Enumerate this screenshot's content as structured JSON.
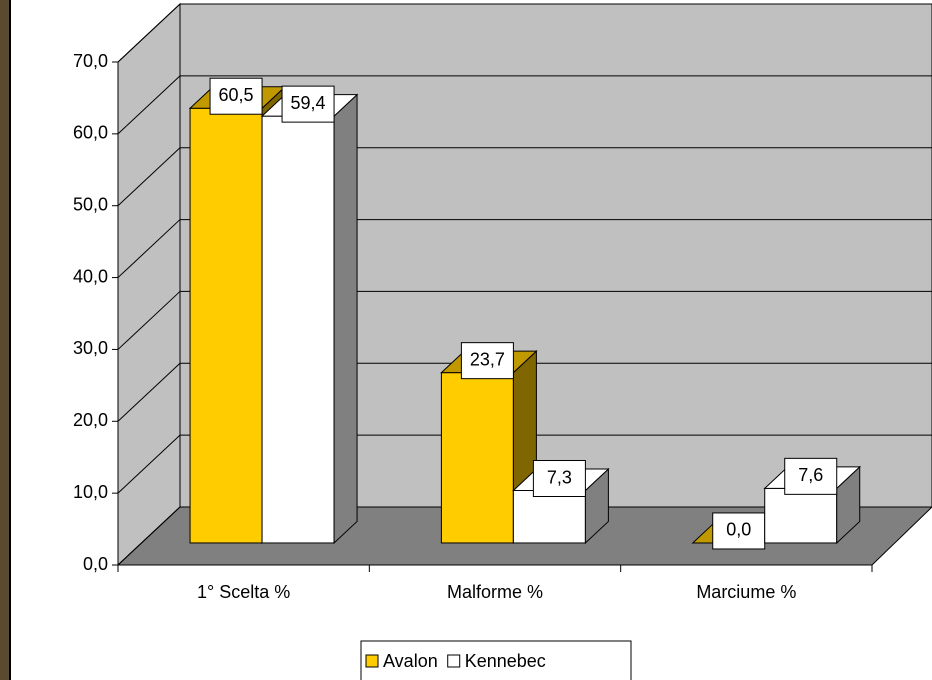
{
  "chart_data": {
    "type": "bar3d",
    "categories": [
      "1° Scelta %",
      "Malforme %",
      "Marciume %"
    ],
    "series": [
      {
        "name": "Avalon",
        "color": "#ffcc00",
        "values": [
          60.5,
          23.7,
          0.0
        ],
        "value_labels": [
          "60,5",
          "23,7",
          "0,0"
        ]
      },
      {
        "name": "Kennebec",
        "color": "#ffffff",
        "values": [
          59.4,
          7.3,
          7.6
        ],
        "value_labels": [
          "59,4",
          "7,3",
          "7,6"
        ]
      }
    ],
    "ylim": [
      0,
      70
    ],
    "yticks": [
      {
        "value": 0,
        "label": "0,0"
      },
      {
        "value": 10,
        "label": "10,0"
      },
      {
        "value": 20,
        "label": "20,0"
      },
      {
        "value": 30,
        "label": "30,0"
      },
      {
        "value": 40,
        "label": "40,0"
      },
      {
        "value": 50,
        "label": "50,0"
      },
      {
        "value": 60,
        "label": "60,0"
      },
      {
        "value": 70,
        "label": "70,0"
      }
    ],
    "grid": true,
    "legend": "bottom"
  }
}
